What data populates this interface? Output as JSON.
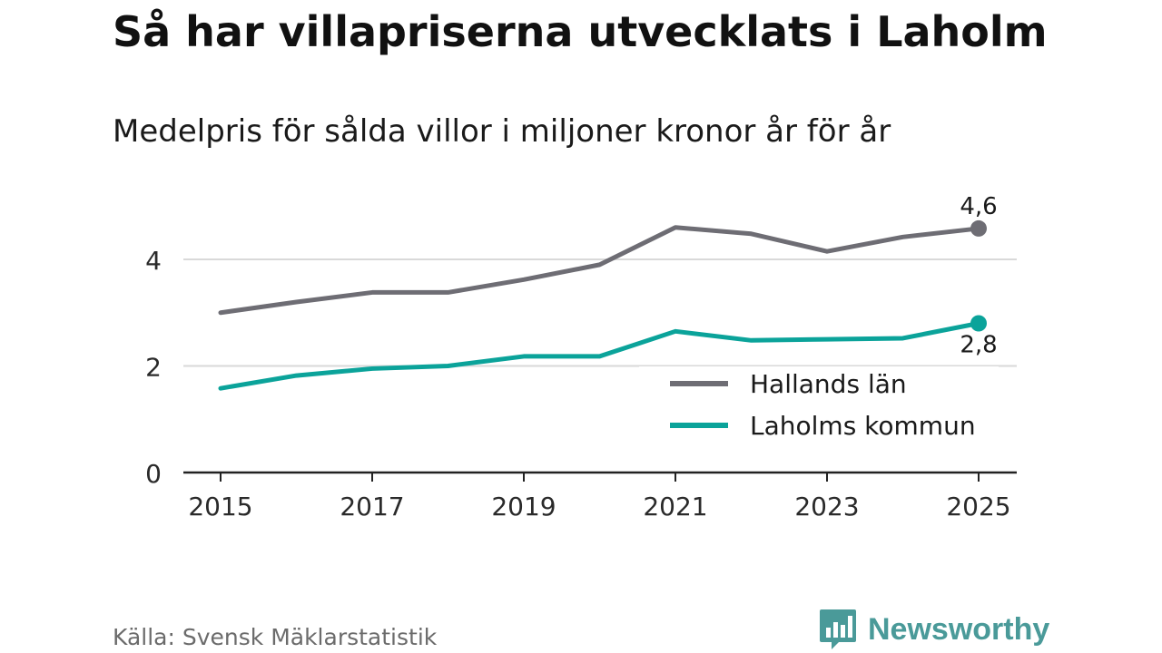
{
  "title": "Så har villapriserna utvecklats i Laholm",
  "subtitle": "Medelpris för sålda villor i miljoner kronor år för år",
  "source": "Källa: Svensk Mäklarstatistik",
  "brand": {
    "name": "Newsworthy",
    "icon": "bar-chart-speech-bubble-icon",
    "color": "#4a9a99"
  },
  "chart_data": {
    "type": "line",
    "title": "Så har villapriserna utvecklats i Laholm",
    "subtitle": "Medelpris för sålda villor i miljoner kronor år för år",
    "xlabel": "",
    "ylabel": "",
    "x": [
      2015,
      2016,
      2017,
      2018,
      2019,
      2020,
      2021,
      2022,
      2023,
      2024,
      2025
    ],
    "xticks": [
      2015,
      2017,
      2019,
      2021,
      2023,
      2025
    ],
    "xtick_labels": [
      "2015",
      "2017",
      "2019",
      "2021",
      "2023",
      "2025"
    ],
    "yticks": [
      0,
      2,
      4
    ],
    "ytick_labels": [
      "0",
      "2",
      "4"
    ],
    "xlim": [
      2014.8,
      2025.5
    ],
    "ylim": [
      0,
      5.0
    ],
    "grid": true,
    "legend_position": "bottom-right",
    "series": [
      {
        "name": "Hallands län",
        "color": "#6e6d74",
        "values": [
          3.0,
          3.2,
          3.38,
          3.38,
          3.62,
          3.9,
          4.6,
          4.48,
          4.15,
          4.42,
          4.58
        ],
        "end_label": "4,6"
      },
      {
        "name": "Laholms kommun",
        "color": "#0ba39a",
        "values": [
          1.58,
          1.82,
          1.95,
          2.0,
          2.18,
          2.18,
          2.65,
          2.48,
          2.5,
          2.52,
          2.8
        ],
        "end_label": "2,8"
      }
    ]
  }
}
